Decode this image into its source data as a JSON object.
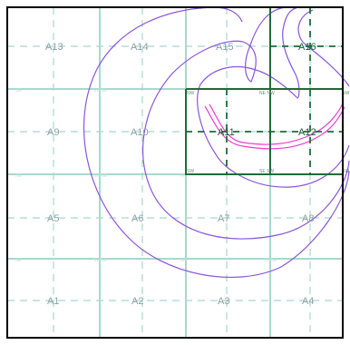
{
  "map": {
    "colors": {
      "background": "#ffffff",
      "border": "#000000",
      "major_grid": "#a8d8cc",
      "minor_grid": "#a8d8cc",
      "selected_frame": "#1f6b3a",
      "contour": "#8a55dd",
      "highlight_path": "#ee3fd2"
    },
    "cells": [
      {
        "id": "A13",
        "label": "A13",
        "selected": false
      },
      {
        "id": "A14",
        "label": "A14",
        "selected": false
      },
      {
        "id": "A15",
        "label": "A15",
        "selected": false
      },
      {
        "id": "A16",
        "label": "A16",
        "selected": true
      },
      {
        "id": "A9",
        "label": "A9",
        "selected": false
      },
      {
        "id": "A10",
        "label": "A10",
        "selected": false
      },
      {
        "id": "A11",
        "label": "A11",
        "selected": true
      },
      {
        "id": "A12",
        "label": "A12",
        "selected": true
      },
      {
        "id": "A5",
        "label": "A5",
        "selected": false
      },
      {
        "id": "A6",
        "label": "A6",
        "selected": false
      },
      {
        "id": "A7",
        "label": "A7",
        "selected": false
      },
      {
        "id": "A8",
        "label": "A8",
        "selected": false
      },
      {
        "id": "A1",
        "label": "A1",
        "selected": false
      },
      {
        "id": "A2",
        "label": "A2",
        "selected": false
      },
      {
        "id": "A3",
        "label": "A3",
        "selected": false
      },
      {
        "id": "A4",
        "label": "A4",
        "selected": false
      }
    ],
    "corner_labels": {
      "nw": "NW",
      "ne": "NE",
      "sw": "SW",
      "se": "SE",
      "ne_nw": "NE NW",
      "se_sw": "SE SW"
    }
  }
}
